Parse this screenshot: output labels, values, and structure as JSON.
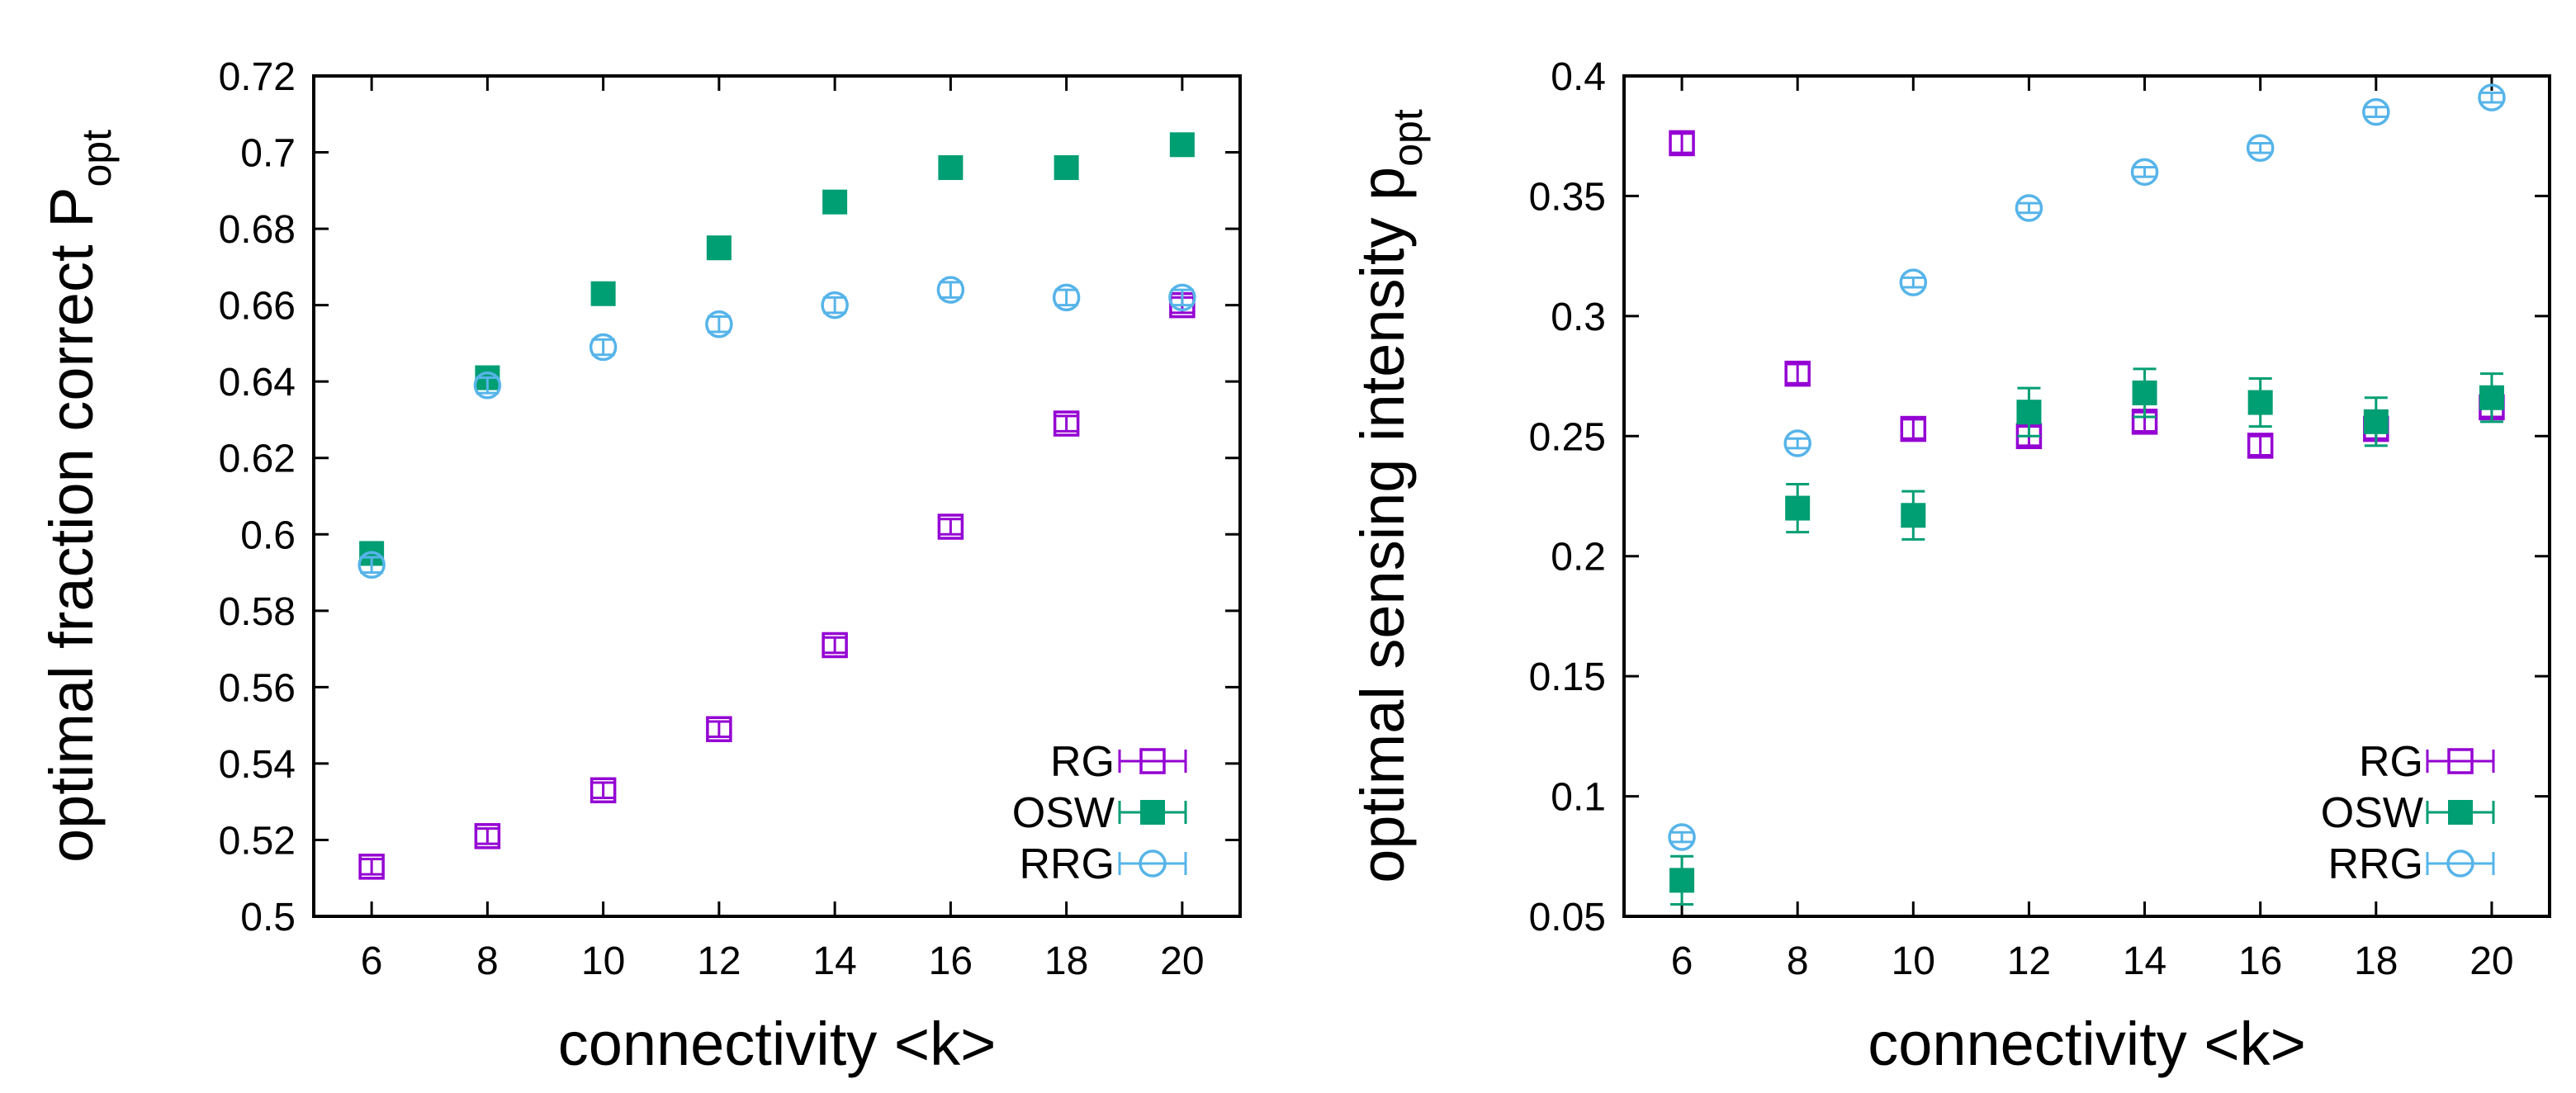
{
  "colors": {
    "RG": "#9400d3",
    "OSW": "#009e73",
    "RRG": "#56b4e9",
    "axis": "#000000"
  },
  "chart_data": [
    {
      "type": "scatter",
      "title": "",
      "xlabel": "connectivity <k>",
      "ylabel_main": "optimal fraction correct P",
      "ylabel_sub": "opt",
      "xlim": [
        5,
        21
      ],
      "ylim": [
        0.5,
        0.72
      ],
      "xticks": [
        6,
        8,
        10,
        12,
        14,
        16,
        18,
        20
      ],
      "xtick_labels": [
        "6",
        "8",
        "10",
        "12",
        "14",
        "16",
        "18",
        "20"
      ],
      "yticks": [
        0.5,
        0.52,
        0.54,
        0.56,
        0.58,
        0.6,
        0.62,
        0.64,
        0.66,
        0.68,
        0.7,
        0.72
      ],
      "ytick_labels": [
        "0.5",
        "0.52",
        "0.54",
        "0.56",
        "0.58",
        "0.6",
        "0.62",
        "0.64",
        "0.66",
        "0.68",
        "0.7",
        "0.72"
      ],
      "legend_position": "bottom-right",
      "x": [
        6,
        8,
        10,
        12,
        14,
        16,
        18,
        20
      ],
      "series": [
        {
          "name": "RG",
          "marker": "open-square",
          "values": [
            0.513,
            0.521,
            0.533,
            0.549,
            0.571,
            0.602,
            0.629,
            0.66
          ],
          "errors": [
            0.002,
            0.002,
            0.002,
            0.002,
            0.002,
            0.002,
            0.002,
            0.002
          ]
        },
        {
          "name": "OSW",
          "marker": "filled-square",
          "values": [
            0.595,
            0.641,
            0.663,
            0.675,
            0.687,
            0.696,
            0.696,
            0.702
          ],
          "errors": [
            0.002,
            0.002,
            0.002,
            0.002,
            0.002,
            0.002,
            0.002,
            0.002
          ]
        },
        {
          "name": "RRG",
          "marker": "open-circle",
          "values": [
            0.592,
            0.639,
            0.649,
            0.655,
            0.66,
            0.664,
            0.662,
            0.662
          ],
          "errors": [
            0.002,
            0.002,
            0.002,
            0.002,
            0.002,
            0.002,
            0.002,
            0.002
          ]
        }
      ]
    },
    {
      "type": "scatter",
      "title": "",
      "xlabel": "connectivity <k>",
      "ylabel_main": "optimal sensing intensity p",
      "ylabel_sub": "opt",
      "xlim": [
        5,
        21
      ],
      "ylim": [
        0.05,
        0.4
      ],
      "xticks": [
        6,
        8,
        10,
        12,
        14,
        16,
        18,
        20
      ],
      "xtick_labels": [
        "6",
        "8",
        "10",
        "12",
        "14",
        "16",
        "18",
        "20"
      ],
      "yticks": [
        0.05,
        0.1,
        0.15,
        0.2,
        0.25,
        0.3,
        0.35,
        0.4
      ],
      "ytick_labels": [
        "0.05",
        "0.1",
        "0.15",
        "0.2",
        "0.25",
        "0.3",
        "0.35",
        "0.4"
      ],
      "legend_position": "bottom-right",
      "x": [
        6,
        8,
        10,
        12,
        14,
        16,
        18,
        20
      ],
      "series": [
        {
          "name": "RG",
          "marker": "open-square",
          "values": [
            0.372,
            0.276,
            0.253,
            0.25,
            0.256,
            0.246,
            0.253,
            0.262
          ],
          "errors": [
            0.004,
            0.004,
            0.004,
            0.004,
            0.004,
            0.004,
            0.004,
            0.004
          ]
        },
        {
          "name": "OSW",
          "marker": "filled-square",
          "values": [
            0.065,
            0.22,
            0.217,
            0.26,
            0.268,
            0.264,
            0.256,
            0.266
          ],
          "errors": [
            0.01,
            0.01,
            0.01,
            0.01,
            0.01,
            0.01,
            0.01,
            0.01
          ]
        },
        {
          "name": "RRG",
          "marker": "open-circle",
          "values": [
            0.083,
            0.247,
            0.314,
            0.345,
            0.36,
            0.37,
            0.385,
            0.391
          ],
          "errors": [
            0.002,
            0.002,
            0.002,
            0.002,
            0.002,
            0.002,
            0.002,
            0.002
          ]
        }
      ]
    }
  ]
}
